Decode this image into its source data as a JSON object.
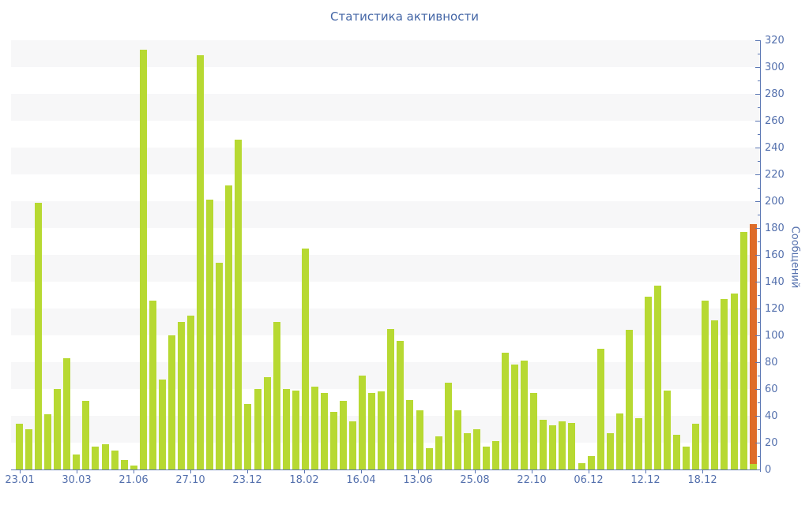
{
  "title": "Статистика активности",
  "chart_data": {
    "type": "bar",
    "title": "Статистика активности",
    "xlabel": "",
    "ylabel": "Сообщений",
    "ylim": [
      0,
      320
    ],
    "y_tick_step": 20,
    "y_minor_tick_step": 10,
    "y_axis_side": "right",
    "grid": "alternating horizontal gray bands every 20 units (gray on 20-40, 60-80, 100-120, 140-160, 180-200, 220-240, 260-280, 300-320)",
    "legend_position": "none",
    "x_tick_labels": [
      "23.01",
      "30.03",
      "21.06",
      "27.10",
      "23.12",
      "18.02",
      "16.04",
      "13.06",
      "25.08",
      "22.10",
      "06.12",
      "12.12",
      "18.12"
    ],
    "x_label_every_n_bars": 6,
    "bar_color": "#b7d932",
    "values": [
      34,
      30,
      199,
      41,
      60,
      83,
      11,
      51,
      17,
      19,
      14,
      7,
      3,
      313,
      126,
      67,
      100,
      110,
      115,
      309,
      201,
      154,
      212,
      246,
      49,
      60,
      69,
      110,
      60,
      59,
      165,
      62,
      57,
      43,
      51,
      36,
      70,
      57,
      58,
      105,
      96,
      52,
      44,
      16,
      25,
      65,
      44,
      27,
      30,
      17,
      21,
      87,
      78,
      81,
      57,
      37,
      33,
      36,
      35,
      5,
      10,
      90,
      27,
      42,
      104,
      38,
      129,
      137,
      59,
      26,
      17,
      34,
      126,
      111,
      127,
      131,
      177,
      183
    ],
    "last_bar": {
      "note": "final bar highlighted in orange with a small green base segment",
      "color": "#de6c28",
      "total_value": 183,
      "green_base_value": 4
    }
  },
  "colors": {
    "background": "#ffffff",
    "band_gray": "#f7f7f8",
    "bar_green": "#b7d932",
    "bar_orange": "#de6c28",
    "axis_blue": "#5b77b4",
    "label_blue": "#5470ad",
    "title_blue": "#4466a6"
  }
}
